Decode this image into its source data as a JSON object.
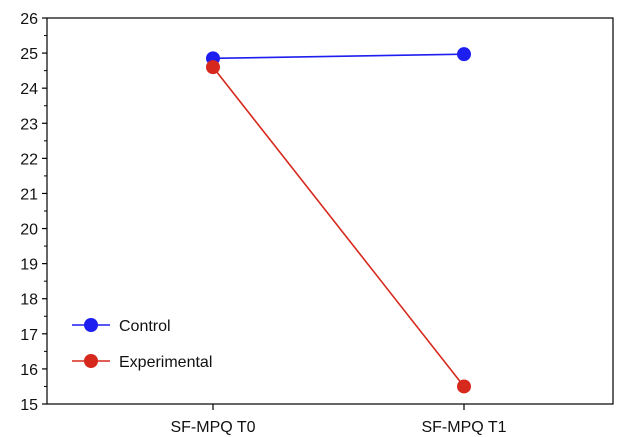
{
  "chart_data": {
    "type": "line",
    "categories": [
      "SF-MPQ T0",
      "SF-MPQ T1"
    ],
    "series": [
      {
        "name": "Control",
        "values": [
          24.85,
          24.97
        ],
        "color": "#1e1ef0"
      },
      {
        "name": "Experimental",
        "values": [
          24.6,
          15.5
        ],
        "color": "#d6281c"
      }
    ],
    "ylim": [
      15,
      26
    ],
    "yticks": [
      "15",
      "16",
      "17",
      "18",
      "19",
      "20",
      "21",
      "22",
      "23",
      "24",
      "25",
      "26"
    ],
    "grid": false,
    "legend_position": "bottom-left"
  }
}
